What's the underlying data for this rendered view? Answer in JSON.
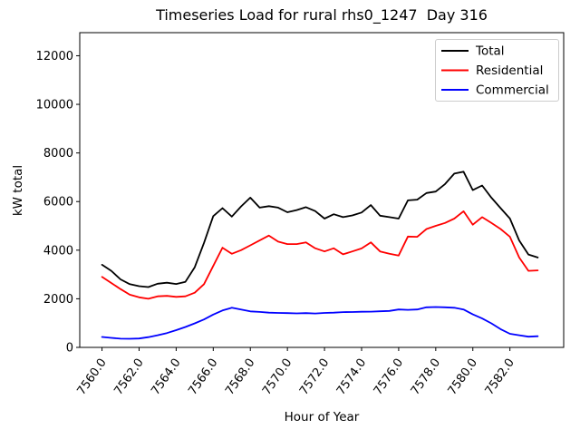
{
  "chart_data": {
    "type": "line",
    "title": "Timeseries Load for rural rhs0_1247  Day 316",
    "xlabel": "Hour of Year",
    "ylabel": "kW total",
    "xlim": [
      7558.8,
      7584.9
    ],
    "ylim": [
      0,
      12950
    ],
    "grid": false,
    "legend_position": "upper right",
    "xticks": {
      "values": [
        7560,
        7562,
        7564,
        7566,
        7568,
        7570,
        7572,
        7574,
        7576,
        7578,
        7580,
        7582
      ],
      "labels": [
        "7560.0",
        "7562.0",
        "7564.0",
        "7566.0",
        "7568.0",
        "7570.0",
        "7572.0",
        "7574.0",
        "7576.0",
        "7578.0",
        "7580.0",
        "7582.0"
      ]
    },
    "yticks": [
      0,
      2000,
      4000,
      6000,
      8000,
      10000,
      12000
    ],
    "x": [
      7560.0,
      7560.5,
      7561.0,
      7561.5,
      7562.0,
      7562.5,
      7563.0,
      7563.5,
      7564.0,
      7564.5,
      7565.0,
      7565.5,
      7566.0,
      7566.5,
      7567.0,
      7567.5,
      7568.0,
      7568.5,
      7569.0,
      7569.5,
      7570.0,
      7570.5,
      7571.0,
      7571.5,
      7572.0,
      7572.5,
      7573.0,
      7573.5,
      7574.0,
      7574.5,
      7575.0,
      7575.5,
      7576.0,
      7576.5,
      7577.0,
      7577.5,
      7578.0,
      7578.5,
      7579.0,
      7579.5,
      7580.0,
      7580.5,
      7581.0,
      7581.5,
      7582.0,
      7582.5,
      7583.0,
      7583.5
    ],
    "series": [
      {
        "name": "Total",
        "color": "#000000",
        "values": [
          3400,
          3150,
          2800,
          2600,
          2520,
          2480,
          2620,
          2660,
          2610,
          2700,
          3300,
          4300,
          5400,
          5730,
          5380,
          5800,
          6160,
          5750,
          5810,
          5750,
          5560,
          5650,
          5770,
          5610,
          5300,
          5480,
          5360,
          5430,
          5550,
          5855,
          5420,
          5360,
          5300,
          6050,
          6080,
          6350,
          6410,
          6720,
          7150,
          7230,
          6470,
          6660,
          6160,
          5730,
          5300,
          4400,
          3820,
          3700
        ]
      },
      {
        "name": "Residential",
        "color": "#ff0000",
        "values": [
          2900,
          2650,
          2400,
          2170,
          2060,
          2000,
          2100,
          2120,
          2080,
          2100,
          2250,
          2600,
          3350,
          4100,
          3850,
          4000,
          4200,
          4400,
          4600,
          4350,
          4250,
          4250,
          4320,
          4080,
          3950,
          4080,
          3830,
          3950,
          4070,
          4320,
          3950,
          3850,
          3780,
          4560,
          4550,
          4870,
          5000,
          5120,
          5300,
          5600,
          5050,
          5360,
          5120,
          4870,
          4550,
          3700,
          3150,
          3170
        ]
      },
      {
        "name": "Commercial",
        "color": "#0000ff",
        "values": [
          430,
          390,
          360,
          355,
          365,
          420,
          500,
          590,
          710,
          840,
          990,
          1150,
          1350,
          1520,
          1630,
          1560,
          1480,
          1460,
          1430,
          1420,
          1410,
          1400,
          1410,
          1395,
          1420,
          1430,
          1450,
          1455,
          1465,
          1470,
          1485,
          1500,
          1560,
          1545,
          1560,
          1650,
          1660,
          1650,
          1630,
          1560,
          1360,
          1190,
          990,
          750,
          560,
          500,
          440,
          460
        ]
      }
    ]
  }
}
